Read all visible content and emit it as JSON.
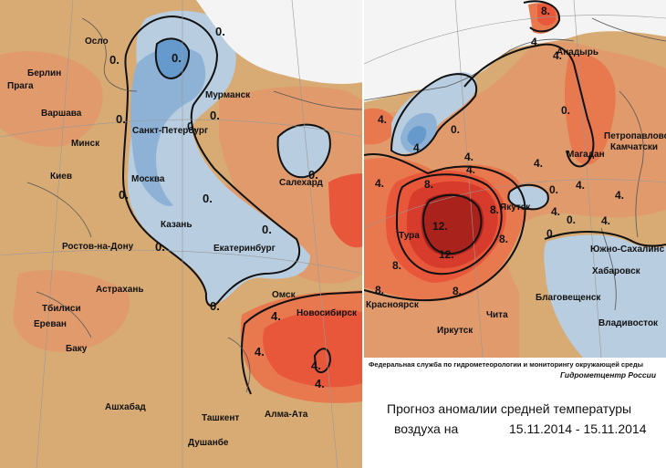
{
  "colors": {
    "base": "#d8ab74",
    "light_orange": "#e09a6b",
    "orange": "#e8784e",
    "red_orange": "#e8573a",
    "red": "#d63b2c",
    "dark_red": "#a9221c",
    "light_blue": "#b9cde0",
    "blue": "#8eb2d6",
    "dark_blue": "#6699cc",
    "white_zone": "#f4f4f4",
    "coast": "#555555"
  },
  "left_map": {
    "cities": {
      "oslo": "Осло",
      "berlin": "Берлин",
      "praga": "Прага",
      "warsaw": "Варшава",
      "minsk": "Минск",
      "kiev": "Киев",
      "rostov": "Ростов-на-Дону",
      "astrakhan": "Астрахань",
      "tbilisi": "Тбилиси",
      "erevan": "Ереван",
      "baku": "Баку",
      "ashgabat": "Ашхабад",
      "tashkent": "Ташкент",
      "almaata": "Алма-Ата",
      "dushanbe": "Душанбе",
      "spb": "Санкт-Петербург",
      "moscow": "Москва",
      "kazan": "Казань",
      "ekb": "Екатеринбург",
      "murmansk": "Мурманск",
      "salekhard": "Салехард",
      "omsk": "Омск",
      "novosibirsk": "Новосибирск"
    },
    "isolines": [
      "0.",
      "0.",
      "0.",
      "0.",
      "0.",
      "0.",
      "0.",
      "0.",
      "0.",
      "0.",
      "0.",
      "0.",
      "4.",
      "4.",
      "4.",
      "4."
    ]
  },
  "right_map": {
    "cities": {
      "anadyr": "Анадырь",
      "petropavlovsk": "Петропавловс",
      "kamchatsky": "Камчатски",
      "magadan": "Магадан",
      "yakutsk": "Якутск",
      "tura": "Тура",
      "krasnoyarsk": "Красноярск",
      "irkutsk": "Иркутск",
      "chita": "Чита",
      "blagoveshchensk": "Благовещенск",
      "yuzhno": "Южно-Сахалинс",
      "khabarovsk": "Хабаровск",
      "vladivostok": "Владивосток"
    },
    "isolines": [
      "8.",
      "4.",
      "4.",
      "0.",
      "4.",
      "4.",
      "4.",
      "4.",
      "4.",
      "4.",
      "0.",
      "4.",
      "8.",
      "8.",
      "8.",
      "8.",
      "12.",
      "12.",
      "8.",
      "8.",
      "4.",
      "0.",
      "0.",
      "4.",
      "0.",
      "4."
    ]
  },
  "footer": {
    "agency": "Федеральная служба по гидрометеорологии и мониторингу окружающей среды",
    "center": "Гидрометцентр России",
    "title_line1": "Прогноз аномалии средней температуры",
    "title_line2": "воздуха на",
    "dates": "15.11.2014 - 15.11.2014"
  }
}
